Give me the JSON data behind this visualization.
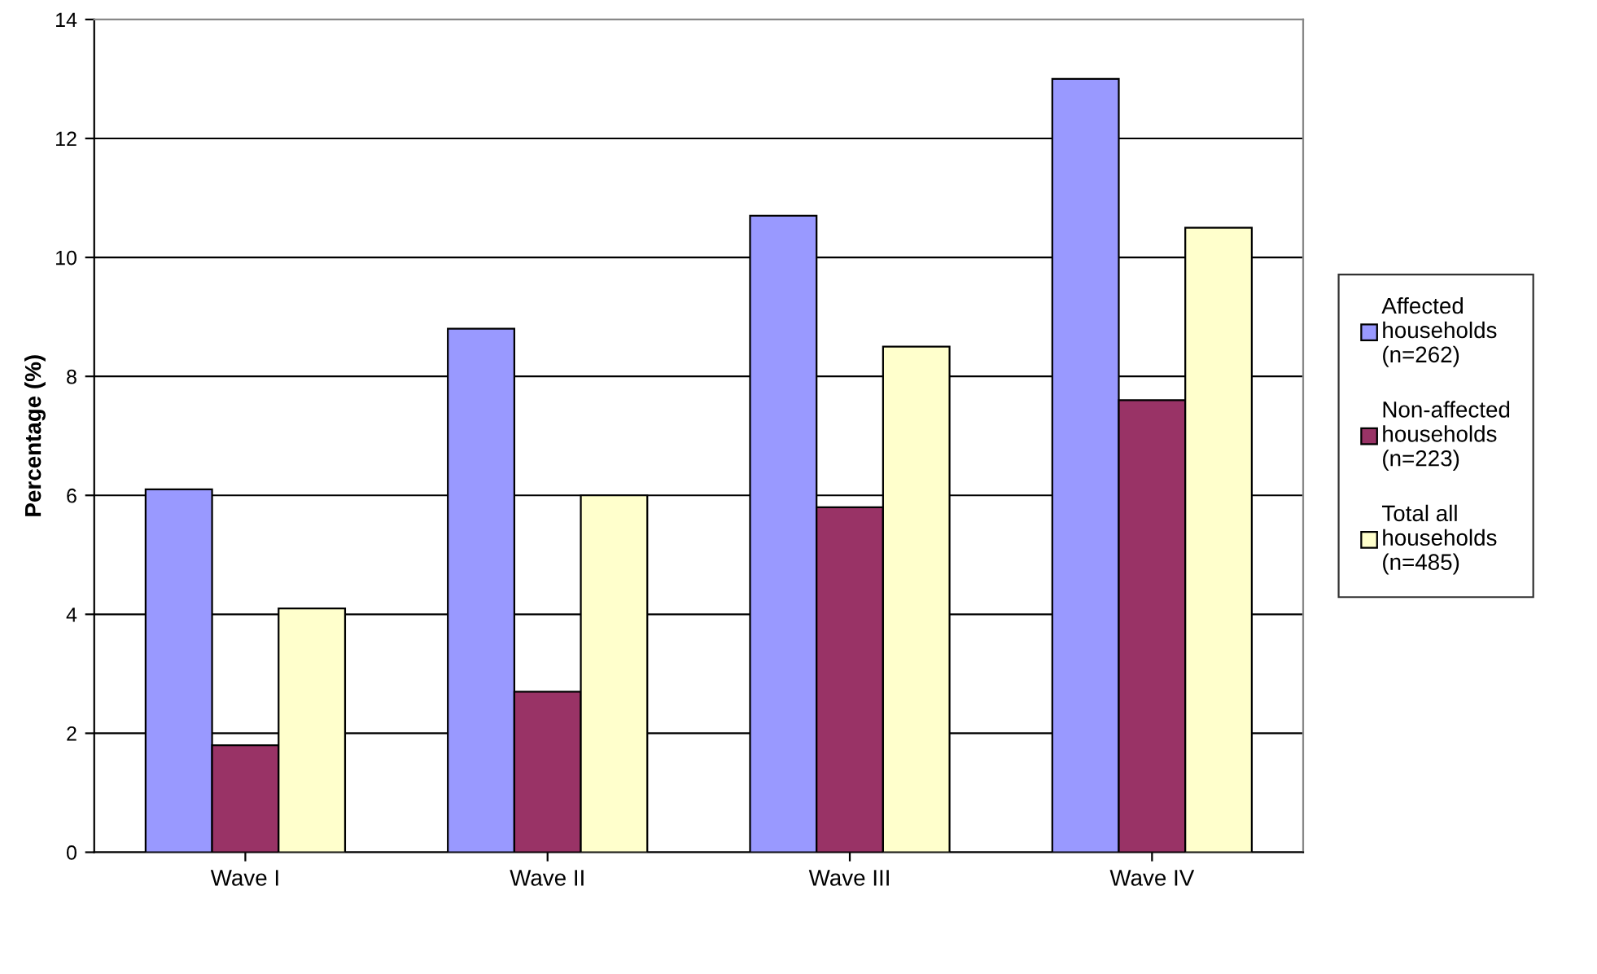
{
  "chart_data": {
    "type": "bar",
    "ylabel": "Percentage (%)",
    "categories": [
      "Wave I",
      "Wave II",
      "Wave III",
      "Wave IV"
    ],
    "series": [
      {
        "name": "Affected\nhouseholds\n(n=262)",
        "color": "#9999ff",
        "values": [
          6.1,
          8.8,
          10.7,
          13.0
        ]
      },
      {
        "name": "Non-affected\nhouseholds\n(n=223)",
        "color": "#993366",
        "values": [
          1.8,
          2.7,
          5.8,
          7.6
        ]
      },
      {
        "name": "Total all\nhouseholds\n(n=485)",
        "color": "#ffffcc",
        "values": [
          4.1,
          6.0,
          8.5,
          10.5
        ]
      }
    ],
    "ylim": [
      0,
      14
    ],
    "yticks": [
      0,
      2,
      4,
      6,
      8,
      10,
      12,
      14
    ],
    "grid": "y",
    "legend": "right"
  }
}
